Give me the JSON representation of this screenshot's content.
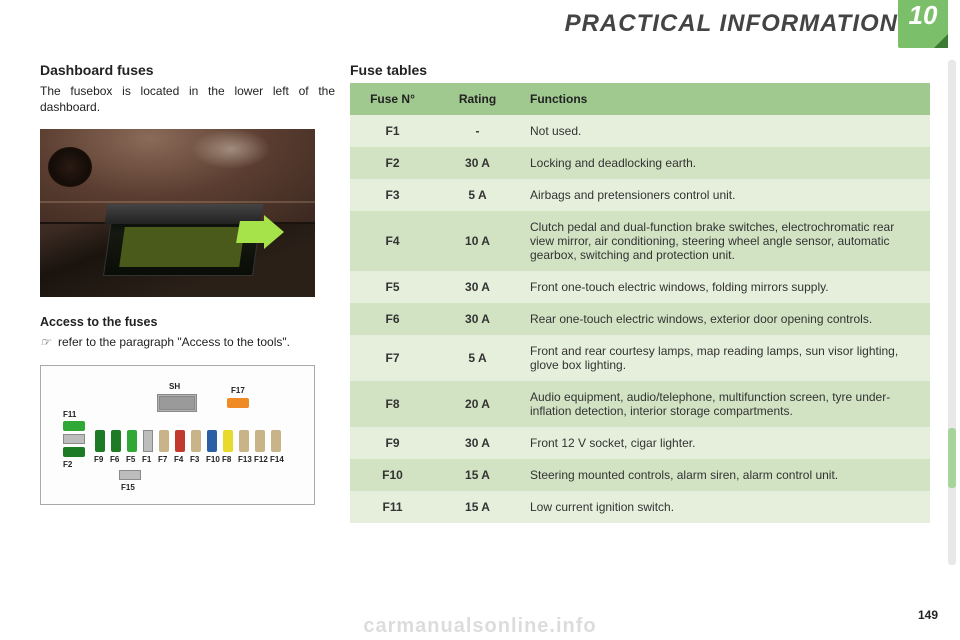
{
  "header": {
    "title": "PRACTICAL INFORMATION",
    "chapter_number": "10"
  },
  "left": {
    "title": "Dashboard fuses",
    "intro": "The fusebox is located in the lower left of the dashboard.",
    "access_title": "Access to the fuses",
    "access_bullet_symbol": "☞",
    "access_bullet_text": "refer to the paragraph \"Access to the tools\"."
  },
  "diagram": {
    "sh_label": "SH",
    "top_right_label": "F17",
    "left_top_label": "F11",
    "left_bot_label": "F2",
    "row_left_label": "F15",
    "row_labels": [
      "F9",
      "F6",
      "F5",
      "F1",
      "F7",
      "F4",
      "F3",
      "F10",
      "F8",
      "F13",
      "F12",
      "F14"
    ],
    "colors": {
      "green": "#2fa836",
      "dgreen": "#1e7b25",
      "blue": "#2a5fa8",
      "red": "#c23a2e",
      "yellow": "#e8d92b",
      "tan": "#c9b48a",
      "grey": "#bdbdbd",
      "orange": "#f08a24"
    }
  },
  "table": {
    "title": "Fuse tables",
    "head": {
      "c1": "Fuse N°",
      "c2": "Rating",
      "c3": "Functions"
    },
    "colors": {
      "head": "#9fc98f",
      "rowA": "#e6efdc",
      "rowB": "#d2e3c3"
    },
    "rows": [
      {
        "n": "F1",
        "r": "-",
        "f": "Not used."
      },
      {
        "n": "F2",
        "r": "30 A",
        "f": "Locking and deadlocking earth."
      },
      {
        "n": "F3",
        "r": "5 A",
        "f": "Airbags and pretensioners control unit."
      },
      {
        "n": "F4",
        "r": "10 A",
        "f": "Clutch pedal and dual-function brake switches, electrochromatic rear view mirror, air conditioning, steering wheel angle sensor, automatic gearbox, switching and protection unit."
      },
      {
        "n": "F5",
        "r": "30 A",
        "f": "Front one-touch electric windows, folding mirrors supply."
      },
      {
        "n": "F6",
        "r": "30 A",
        "f": "Rear one-touch electric windows, exterior door opening controls."
      },
      {
        "n": "F7",
        "r": "5 A",
        "f": "Front and rear courtesy lamps, map reading lamps, sun visor lighting, glove box lighting."
      },
      {
        "n": "F8",
        "r": "20 A",
        "f": "Audio equipment, audio/telephone, multifunction screen, tyre under-inflation detection, interior storage compartments."
      },
      {
        "n": "F9",
        "r": "30 A",
        "f": "Front 12 V socket, cigar lighter."
      },
      {
        "n": "F10",
        "r": "15 A",
        "f": "Steering mounted controls, alarm siren, alarm control unit."
      },
      {
        "n": "F11",
        "r": "15 A",
        "f": "Low current ignition switch."
      }
    ]
  },
  "footer": {
    "page": "149",
    "watermark": "carmanualsonline.info"
  }
}
